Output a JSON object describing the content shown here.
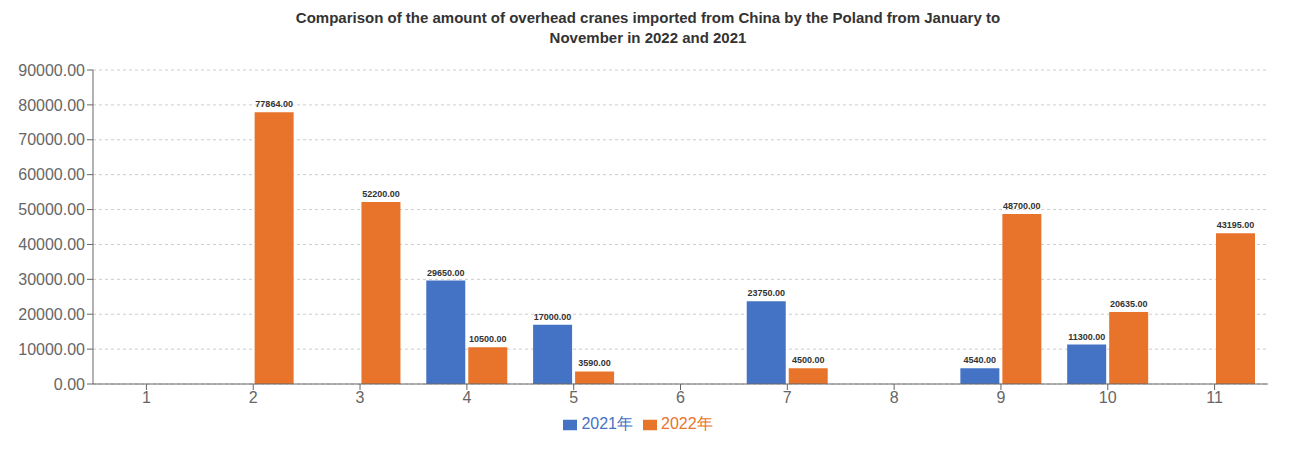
{
  "chart_data": {
    "type": "bar",
    "title": "Comparison of the amount of overhead cranes imported from China by the Poland from January to\nNovember in 2022 and 2021",
    "categories": [
      "1",
      "2",
      "3",
      "4",
      "5",
      "6",
      "7",
      "8",
      "9",
      "10",
      "11"
    ],
    "series": [
      {
        "name": "2021年",
        "color": "#4472c4",
        "values": [
          0,
          0,
          0,
          29650,
          17000,
          0,
          23750,
          0,
          4540,
          11300,
          0
        ],
        "value_labels": [
          null,
          null,
          null,
          "29650.00",
          "17000.00",
          null,
          "23750.00",
          null,
          "4540.00",
          "11300.00",
          null
        ]
      },
      {
        "name": "2022年",
        "color": "#e8732a",
        "values": [
          0,
          77864,
          52200,
          10500,
          3590,
          0,
          4500,
          0,
          48700,
          20635,
          43195
        ],
        "value_labels": [
          null,
          "77864.00",
          "52200.00",
          "10500.00",
          "3590.00",
          null,
          "4500.00",
          null,
          "48700.00",
          "20635.00",
          "43195.00"
        ]
      }
    ],
    "ylim": [
      0,
      90000
    ],
    "yticks": [
      {
        "value": 0,
        "label": "0.00"
      },
      {
        "value": 10000,
        "label": "10000.00"
      },
      {
        "value": 20000,
        "label": "20000.00"
      },
      {
        "value": 30000,
        "label": "30000.00"
      },
      {
        "value": 40000,
        "label": "40000.00"
      },
      {
        "value": 50000,
        "label": "50000.00"
      },
      {
        "value": 60000,
        "label": "60000.00"
      },
      {
        "value": 70000,
        "label": "70000.00"
      },
      {
        "value": 80000,
        "label": "80000.00"
      },
      {
        "value": 90000,
        "label": "90000.00"
      }
    ],
    "grid": true,
    "legend": "bottom",
    "data_labels": true
  }
}
